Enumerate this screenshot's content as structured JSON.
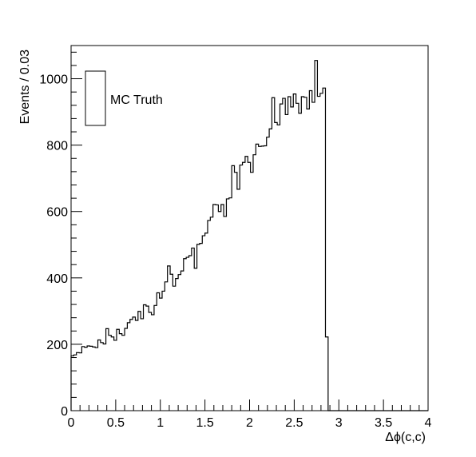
{
  "chart_data": {
    "type": "histogram",
    "xlabel": "Δϕ(c,c)",
    "ylabel": "Events / 0.03",
    "xlim": [
      0,
      4
    ],
    "ylim": [
      0,
      1100
    ],
    "bin_width": 0.03,
    "x_ticks": [
      0,
      0.5,
      1,
      1.5,
      2,
      2.5,
      3,
      3.5,
      4
    ],
    "x_tick_labels": [
      "0",
      "0.5",
      "1",
      "1.5",
      "2",
      "2.5",
      "3",
      "3.5",
      "4"
    ],
    "y_ticks": [
      0,
      200,
      400,
      600,
      800,
      1000
    ],
    "y_tick_labels": [
      "0",
      "200",
      "400",
      "600",
      "800",
      "1000"
    ],
    "grid": false,
    "legend": {
      "entries": [
        "MC Truth"
      ],
      "placement": "top-left"
    },
    "series": [
      {
        "name": "MC Truth",
        "color": "#000000",
        "bin_edges_start": 0,
        "values": [
          165,
          168,
          175,
          174,
          193,
          191,
          195,
          194,
          192,
          190,
          213,
          205,
          201,
          247,
          227,
          222,
          212,
          245,
          232,
          227,
          248,
          265,
          275,
          282,
          272,
          299,
          277,
          319,
          315,
          296,
          289,
          317,
          355,
          339,
          360,
          388,
          436,
          411,
          375,
          398,
          410,
          421,
          458,
          462,
          467,
          490,
          429,
          501,
          504,
          527,
          535,
          573,
          583,
          621,
          620,
          600,
          621,
          585,
          638,
          641,
          738,
          718,
          667,
          740,
          748,
          766,
          748,
          718,
          771,
          803,
          796,
          797,
          798,
          824,
          849,
          943,
          868,
          861,
          924,
          941,
          892,
          946,
          915,
          954,
          926,
          896,
          946,
          944,
          909,
          964,
          929,
          1055,
          947,
          956,
          972,
          222,
          0,
          0,
          0,
          0,
          0,
          0,
          0,
          0,
          0,
          0,
          0,
          0,
          0,
          0,
          0,
          0,
          0,
          0,
          0,
          0,
          0,
          0,
          0,
          0,
          0,
          0,
          0,
          0,
          0,
          0,
          0,
          0,
          0,
          0,
          0,
          0,
          0,
          0
        ]
      }
    ]
  }
}
